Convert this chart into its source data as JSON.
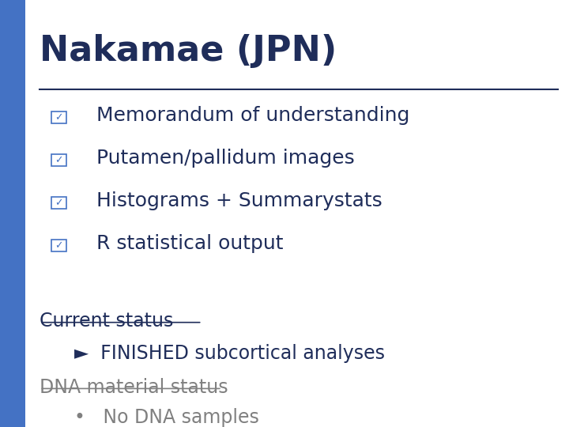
{
  "title": "Nakamae (JPN)",
  "title_color": "#1F2D5A",
  "title_fontsize": 32,
  "bg_color": "#FFFFFF",
  "sidebar_color": "#4472C4",
  "line_color": "#1F2D5A",
  "bullet_items": [
    "Memorandum of understanding",
    "Putamen/pallidum images",
    "Histograms + Summarystats",
    "R statistical output"
  ],
  "bullet_color": "#1F2D5A",
  "bullet_fontsize": 18,
  "checkbox_color": "#4472C4",
  "current_status_label": "Current status",
  "current_status_color": "#1F2D5A",
  "current_status_fontsize": 17,
  "finished_text": "►  FINISHED subcortical analyses",
  "finished_color": "#1F2D5A",
  "finished_fontsize": 17,
  "dna_label": "DNA material status",
  "dna_color": "#808080",
  "dna_fontsize": 17,
  "no_dna_text": "•   No DNA samples",
  "no_dna_color": "#808080",
  "no_dna_fontsize": 17
}
